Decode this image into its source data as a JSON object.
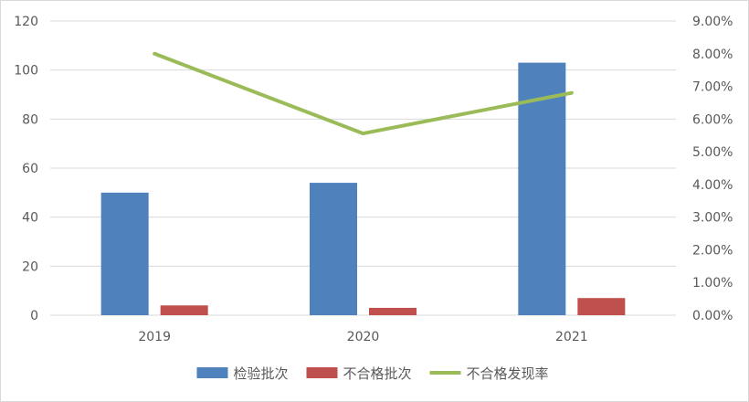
{
  "chart_data": {
    "type": "bar",
    "categories": [
      "2019",
      "2020",
      "2021"
    ],
    "series": [
      {
        "name": "检验批次",
        "kind": "bar",
        "axis": "left",
        "color": "#4f81bd",
        "values": [
          50,
          54,
          103
        ]
      },
      {
        "name": "不合格批次",
        "kind": "bar",
        "axis": "left",
        "color": "#c0504d",
        "values": [
          4,
          3,
          7
        ]
      },
      {
        "name": "不合格发现率",
        "kind": "line",
        "axis": "right",
        "color": "#9bbb59",
        "values": [
          0.08,
          0.0556,
          0.068
        ]
      }
    ],
    "y_left": {
      "min": 0,
      "max": 120,
      "ticks": [
        "0",
        "20",
        "40",
        "60",
        "80",
        "100",
        "120"
      ]
    },
    "y_right": {
      "min": 0,
      "max": 0.09,
      "ticks": [
        "0.00%",
        "1.00%",
        "2.00%",
        "3.00%",
        "4.00%",
        "5.00%",
        "6.00%",
        "7.00%",
        "8.00%",
        "9.00%"
      ]
    },
    "grid": true,
    "legend": "bottom-center",
    "title": "",
    "xlabel": "",
    "ylabel": ""
  }
}
